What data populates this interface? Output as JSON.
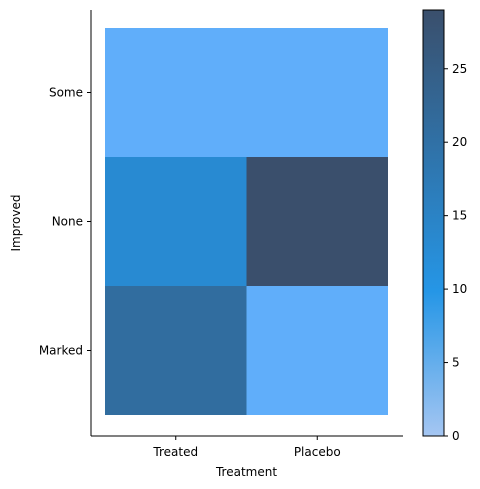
{
  "chart_data": {
    "type": "heatmap",
    "title": "",
    "xlabel": "Treatment",
    "ylabel": "Improved",
    "x_categories": [
      "Treated",
      "Placebo"
    ],
    "y_categories": [
      "Marked",
      "None",
      "Some"
    ],
    "cells": [
      {
        "x": "Treated",
        "y": "Some",
        "value": 7
      },
      {
        "x": "Placebo",
        "y": "Some",
        "value": 7
      },
      {
        "x": "Treated",
        "y": "None",
        "value": 13
      },
      {
        "x": "Placebo",
        "y": "None",
        "value": 29
      },
      {
        "x": "Treated",
        "y": "Marked",
        "value": 21
      },
      {
        "x": "Placebo",
        "y": "Marked",
        "value": 7
      }
    ],
    "colorbar": {
      "range": [
        0,
        29
      ],
      "ticks": [
        "0",
        "5",
        "10",
        "15",
        "20",
        "25"
      ],
      "colors": [
        "#a5c6f2",
        "#2596e6",
        "#3a4f6c"
      ]
    },
    "grid": false,
    "legend": "colorbar-right"
  }
}
